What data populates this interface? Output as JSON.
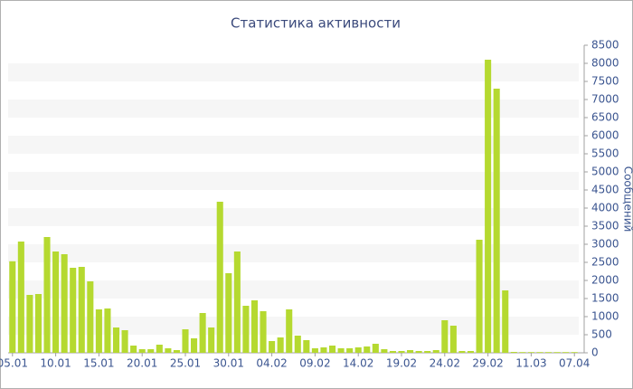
{
  "chart_data": {
    "type": "bar",
    "title": "Статистика активности",
    "y_label": "Сообщений",
    "categories": [
      "05.01",
      null,
      null,
      null,
      null,
      "10.01",
      null,
      null,
      null,
      null,
      "15.01",
      null,
      null,
      null,
      null,
      "20.01",
      null,
      null,
      null,
      null,
      "25.01",
      null,
      null,
      null,
      null,
      "30.01",
      null,
      null,
      null,
      null,
      "04.02",
      null,
      null,
      null,
      null,
      "09.02",
      null,
      null,
      null,
      null,
      "14.02",
      null,
      null,
      null,
      null,
      "19.02",
      null,
      null,
      null,
      null,
      "24.02",
      null,
      null,
      null,
      null,
      "29.02",
      null,
      null,
      null,
      null,
      "11.03",
      null,
      null,
      null,
      null,
      "07.04"
    ],
    "values": [
      2530,
      3075,
      1600,
      1625,
      3200,
      2800,
      2725,
      2350,
      2375,
      1975,
      1200,
      1225,
      700,
      625,
      200,
      100,
      100,
      225,
      125,
      75,
      650,
      400,
      1100,
      700,
      4175,
      2200,
      2800,
      1300,
      1450,
      1150,
      325,
      425,
      1200,
      475,
      350,
      125,
      150,
      200,
      125,
      125,
      150,
      175,
      250,
      100,
      50,
      50,
      75,
      50,
      50,
      75,
      900,
      750,
      50,
      50,
      3125,
      8100,
      7300,
      1725,
      25,
      20,
      20,
      20,
      20,
      20,
      20,
      20
    ],
    "color": "#b5d930",
    "ylim": [
      0,
      8500
    ],
    "yticks": [
      0,
      500,
      1000,
      1500,
      2000,
      2500,
      3000,
      3500,
      4000,
      4500,
      5000,
      5500,
      6000,
      6500,
      7000,
      7500,
      8000,
      8500
    ],
    "grid": true
  }
}
